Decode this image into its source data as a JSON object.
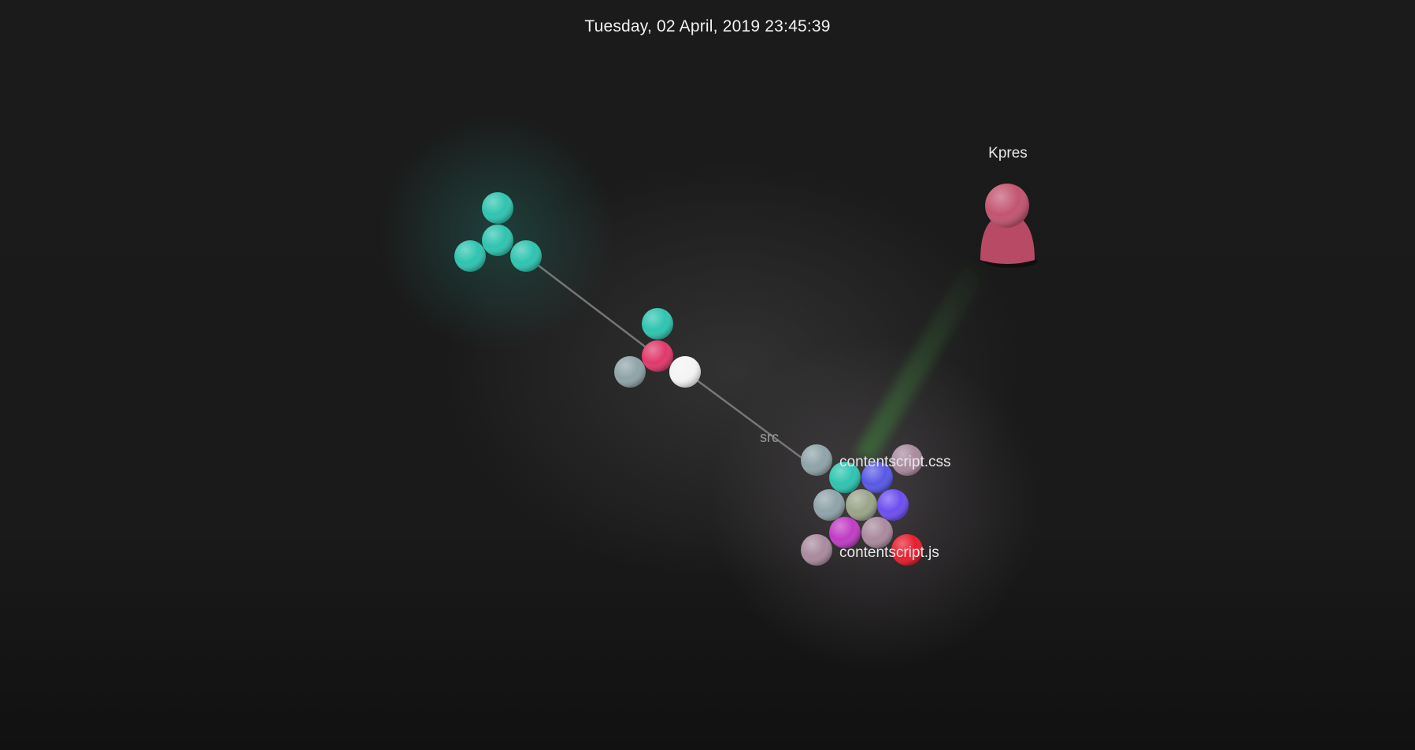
{
  "header": {
    "datetime": "Tuesday, 02 April, 2019 23:45:39"
  },
  "user": {
    "name": "Kpres",
    "color": "#b84a66"
  },
  "labels": {
    "directory": "src",
    "file_css": "contentscript.css",
    "file_js": "contentscript.js"
  },
  "colors": {
    "background": "#1b1b1b",
    "edge": "#8a8a8a",
    "beam": "#3f7a3a",
    "teal": "#2ec4b0",
    "pink": "#e0386a",
    "white": "#f4f4f4",
    "gray": "#8fa3a8",
    "mauve": "#a98a9e",
    "blue": "#5858e6",
    "violet": "#6c4ef0",
    "olive": "#9aa48a",
    "magenta": "#c03cc4",
    "red": "#e81c2c"
  }
}
